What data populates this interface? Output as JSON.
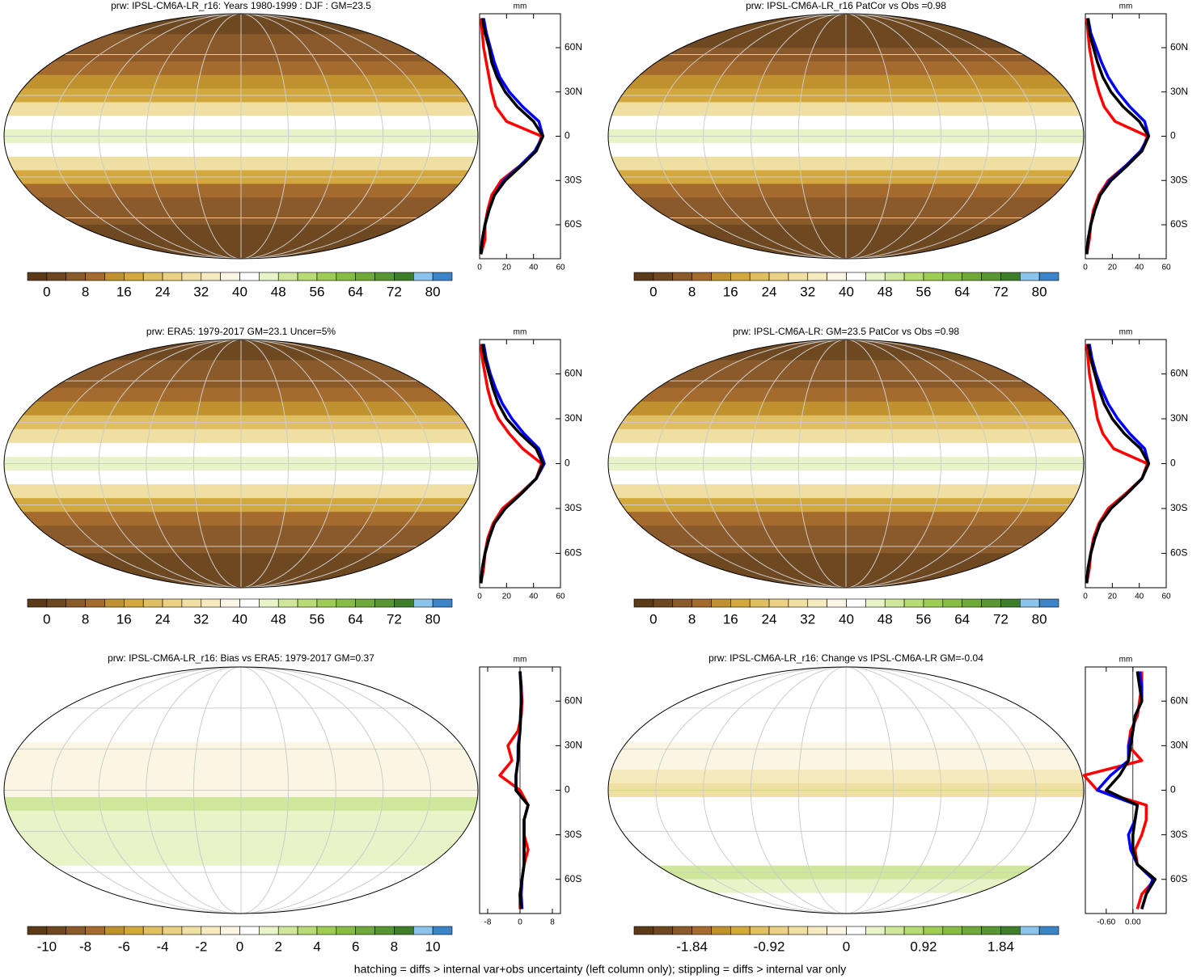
{
  "chart_data": [
    {
      "type": "map",
      "title": "prw: IPSL-CM6A-LR_r16: Years 1980-1999 : DJF : GM=23.5",
      "colors": [
        "#5b3b17",
        "#6e4820",
        "#8a5a2a",
        "#a56b2e",
        "#c0912f",
        "#d3a93e",
        "#e0bf62",
        "#ead184",
        "#f0dfa2",
        "#f5eabd",
        "#fbf6e4",
        "#ffffff",
        "#e8f3c8",
        "#cfe79a",
        "#b8db74",
        "#9fcc55",
        "#87bc45",
        "#6ea93a",
        "#579632",
        "#3f7f2b",
        "#8ac4ec",
        "#3b84c8"
      ],
      "clim": [
        0,
        80
      ],
      "cticks": [
        0,
        8,
        16,
        24,
        32,
        40,
        48,
        56,
        64,
        72,
        80
      ],
      "profile": {
        "type": "line",
        "xlabel": "mm",
        "y": [
          80,
          70,
          60,
          50,
          40,
          30,
          20,
          10,
          0,
          -10,
          -20,
          -30,
          -40,
          -50,
          -60,
          -70,
          -80
        ],
        "ylim": [
          -83,
          83
        ],
        "yticks": [
          {
            "value": 60,
            "label": "60N"
          },
          {
            "value": 30,
            "label": "30N"
          },
          0,
          {
            "value": -30,
            "label": "30S"
          },
          {
            "value": -60,
            "label": "60S"
          }
        ],
        "xlim": [
          0,
          60
        ],
        "xticks": [
          0,
          20,
          40,
          60
        ],
        "series": [
          {
            "color": "#ff0000",
            "values": [
              1,
              2,
              3,
              5,
              7,
              9,
              12,
              20,
              46,
              42,
              30,
              16,
              9,
              6,
              4,
              4,
              1
            ]
          },
          {
            "color": "#0000ff",
            "values": [
              3,
              5,
              8,
              11,
              15,
              22,
              32,
              44,
              47,
              41,
              30,
              18,
              11,
              7,
              4,
              2,
              1
            ]
          },
          {
            "color": "#000000",
            "values": [
              2,
              4,
              7,
              9,
              13,
              19,
              28,
              40,
              47,
              42,
              31,
              19,
              11,
              7,
              4,
              2,
              1
            ]
          }
        ]
      }
    },
    {
      "type": "map",
      "title": "prw: IPSL-CM6A-LR_r16 PatCor vs Obs =0.98",
      "colors": [
        "#5b3b17",
        "#6e4820",
        "#8a5a2a",
        "#a56b2e",
        "#c0912f",
        "#d3a93e",
        "#e0bf62",
        "#ead184",
        "#f0dfa2",
        "#f5eabd",
        "#fbf6e4",
        "#ffffff",
        "#e8f3c8",
        "#cfe79a",
        "#b8db74",
        "#9fcc55",
        "#87bc45",
        "#6ea93a",
        "#579632",
        "#3f7f2b",
        "#8ac4ec",
        "#3b84c8"
      ],
      "clim": [
        0,
        80
      ],
      "cticks": [
        0,
        8,
        16,
        24,
        32,
        40,
        48,
        56,
        64,
        72,
        80
      ],
      "profile": {
        "type": "line",
        "xlabel": "mm",
        "y": [
          80,
          70,
          60,
          50,
          40,
          30,
          20,
          10,
          0,
          -10,
          -20,
          -30,
          -40,
          -50,
          -60,
          -70,
          -80
        ],
        "ylim": [
          -83,
          83
        ],
        "yticks": [
          {
            "value": 60,
            "label": "60N"
          },
          {
            "value": 30,
            "label": "30N"
          },
          0,
          {
            "value": -30,
            "label": "30S"
          },
          {
            "value": -60,
            "label": "60S"
          }
        ],
        "xlim": [
          0,
          60
        ],
        "xticks": [
          0,
          20,
          40,
          60
        ],
        "series": [
          {
            "color": "#ff0000",
            "values": [
              1,
              2,
              3,
              5,
              7,
              10,
              14,
              22,
              46,
              42,
              30,
              17,
              10,
              6,
              4,
              3,
              1
            ]
          },
          {
            "color": "#0000ff",
            "values": [
              2,
              4,
              8,
              12,
              17,
              24,
              33,
              44,
              47,
              41,
              30,
              18,
              11,
              7,
              4,
              2,
              1
            ]
          },
          {
            "color": "#000000",
            "values": [
              2,
              3,
              6,
              9,
              13,
              19,
              28,
              40,
              47,
              42,
              31,
              19,
              11,
              7,
              4,
              2,
              1
            ]
          }
        ]
      }
    },
    {
      "type": "map",
      "title": "prw: ERA5: 1979-2017 GM=23.1 Uncer=5%",
      "colors": [
        "#5b3b17",
        "#6e4820",
        "#8a5a2a",
        "#a56b2e",
        "#c0912f",
        "#d3a93e",
        "#e0bf62",
        "#ead184",
        "#f0dfa2",
        "#f5eabd",
        "#fbf6e4",
        "#ffffff",
        "#e8f3c8",
        "#cfe79a",
        "#b8db74",
        "#9fcc55",
        "#87bc45",
        "#6ea93a",
        "#579632",
        "#3f7f2b",
        "#8ac4ec",
        "#3b84c8"
      ],
      "clim": [
        0,
        80
      ],
      "cticks": [
        0,
        8,
        16,
        24,
        32,
        40,
        48,
        56,
        64,
        72,
        80
      ],
      "profile": {
        "type": "line",
        "xlabel": "mm",
        "y": [
          80,
          70,
          60,
          50,
          40,
          30,
          20,
          10,
          0,
          -10,
          -20,
          -30,
          -40,
          -50,
          -60,
          -70,
          -80
        ],
        "ylim": [
          -83,
          83
        ],
        "yticks": [
          {
            "value": 60,
            "label": "60N"
          },
          {
            "value": 30,
            "label": "30N"
          },
          0,
          {
            "value": -30,
            "label": "30S"
          },
          {
            "value": -60,
            "label": "60S"
          }
        ],
        "xlim": [
          0,
          60
        ],
        "xticks": [
          0,
          20,
          40,
          60
        ],
        "series": [
          {
            "color": "#ff0000",
            "values": [
              1,
              2,
              4,
              6,
              9,
              14,
              22,
              32,
              46,
              42,
              30,
              17,
              10,
              6,
              4,
              3,
              1
            ]
          },
          {
            "color": "#0000ff",
            "values": [
              3,
              5,
              8,
              12,
              17,
              24,
              33,
              44,
              48,
              42,
              31,
              19,
              11,
              7,
              4,
              2,
              1
            ]
          },
          {
            "color": "#000000",
            "values": [
              2,
              4,
              7,
              10,
              14,
              20,
              30,
              42,
              47,
              42,
              31,
              19,
              11,
              7,
              4,
              2,
              1
            ]
          }
        ]
      }
    },
    {
      "type": "map",
      "title": "prw: IPSL-CM6A-LR: GM=23.5 PatCor vs Obs =0.98",
      "colors": [
        "#5b3b17",
        "#6e4820",
        "#8a5a2a",
        "#a56b2e",
        "#c0912f",
        "#d3a93e",
        "#e0bf62",
        "#ead184",
        "#f0dfa2",
        "#f5eabd",
        "#fbf6e4",
        "#ffffff",
        "#e8f3c8",
        "#cfe79a",
        "#b8db74",
        "#9fcc55",
        "#87bc45",
        "#6ea93a",
        "#579632",
        "#3f7f2b",
        "#8ac4ec",
        "#3b84c8"
      ],
      "clim": [
        0,
        80
      ],
      "cticks": [
        0,
        8,
        16,
        24,
        32,
        40,
        48,
        56,
        64,
        72,
        80
      ],
      "profile": {
        "type": "line",
        "xlabel": "mm",
        "y": [
          80,
          70,
          60,
          50,
          40,
          30,
          20,
          10,
          0,
          -10,
          -20,
          -30,
          -40,
          -50,
          -60,
          -70,
          -80
        ],
        "ylim": [
          -83,
          83
        ],
        "yticks": [
          {
            "value": 60,
            "label": "60N"
          },
          {
            "value": 30,
            "label": "30N"
          },
          0,
          {
            "value": -30,
            "label": "30S"
          },
          {
            "value": -60,
            "label": "60S"
          }
        ],
        "xlim": [
          0,
          60
        ],
        "xticks": [
          0,
          20,
          40,
          60
        ],
        "series": [
          {
            "color": "#ff0000",
            "values": [
              1,
              2,
              3,
              5,
              7,
              9,
              13,
              21,
              46,
              42,
              30,
              17,
              10,
              6,
              4,
              3,
              1
            ]
          },
          {
            "color": "#0000ff",
            "values": [
              3,
              5,
              8,
              12,
              17,
              24,
              33,
              44,
              47,
              42,
              31,
              19,
              11,
              7,
              4,
              2,
              1
            ]
          },
          {
            "color": "#000000",
            "values": [
              2,
              4,
              7,
              10,
              14,
              20,
              29,
              41,
              47,
              42,
              31,
              19,
              11,
              7,
              4,
              2,
              1
            ]
          }
        ]
      }
    },
    {
      "type": "map",
      "title": "prw: IPSL-CM6A-LR_r16: Bias vs ERA5: 1979-2017 GM=0.37",
      "colors": [
        "#5b3b17",
        "#6e4820",
        "#8a5a2a",
        "#a56b2e",
        "#c0912f",
        "#d3a93e",
        "#e0bf62",
        "#ead184",
        "#f0dfa2",
        "#f5eabd",
        "#fbf6e4",
        "#ffffff",
        "#e8f3c8",
        "#cfe79a",
        "#b8db74",
        "#9fcc55",
        "#87bc45",
        "#6ea93a",
        "#579632",
        "#3f7f2b",
        "#8ac4ec",
        "#3b84c8"
      ],
      "clim": [
        -10,
        10
      ],
      "cticks": [
        -10,
        -8,
        -6,
        -4,
        -2,
        0,
        2,
        4,
        6,
        8,
        10
      ],
      "profile": {
        "type": "line",
        "xlabel": "mm",
        "y": [
          80,
          70,
          60,
          50,
          40,
          30,
          20,
          10,
          0,
          -10,
          -20,
          -30,
          -40,
          -50,
          -60,
          -70,
          -80
        ],
        "ylim": [
          -83,
          83
        ],
        "yticks": [
          {
            "value": 60,
            "label": "60N"
          },
          {
            "value": 30,
            "label": "30N"
          },
          0,
          {
            "value": -30,
            "label": "30S"
          },
          {
            "value": -60,
            "label": "60S"
          }
        ],
        "xlim": [
          -10,
          10
        ],
        "xticks": [
          -8,
          0,
          8
        ],
        "series": [
          {
            "color": "#ff0000",
            "values": [
              0,
              0.3,
              0.5,
              0.3,
              -0.5,
              -3,
              -2,
              -5,
              0,
              2,
              1,
              1,
              2,
              1,
              0.5,
              0,
              0
            ]
          },
          {
            "color": "#0000ff",
            "values": [
              0,
              0.3,
              0.3,
              0.2,
              0,
              -0.5,
              -0.5,
              -1,
              -1,
              2,
              1,
              1,
              1,
              1,
              0.5,
              0.3,
              0.5
            ]
          },
          {
            "color": "#000000",
            "values": [
              0,
              0.2,
              0.3,
              0.1,
              0,
              -0.3,
              -0.5,
              -1,
              -1,
              2,
              1,
              1,
              1,
              1,
              0.5,
              0,
              0.3
            ]
          }
        ]
      }
    },
    {
      "type": "map",
      "title": "prw: IPSL-CM6A-LR_r16: Change vs IPSL-CM6A-LR GM=-0.04",
      "colors": [
        "#5b3b17",
        "#6e4820",
        "#8a5a2a",
        "#a56b2e",
        "#c0912f",
        "#d3a93e",
        "#e0bf62",
        "#ead184",
        "#f0dfa2",
        "#f5eabd",
        "#fbf6e4",
        "#ffffff",
        "#e8f3c8",
        "#cfe79a",
        "#b8db74",
        "#9fcc55",
        "#87bc45",
        "#6ea93a",
        "#579632",
        "#3f7f2b",
        "#8ac4ec",
        "#3b84c8"
      ],
      "clim": [
        -2.3,
        2.3
      ],
      "cticks": [
        -1.84,
        -0.92,
        0,
        0.92,
        1.84
      ],
      "profile": {
        "type": "line",
        "xlabel": "mm",
        "y": [
          80,
          70,
          60,
          50,
          40,
          30,
          20,
          10,
          0,
          -10,
          -20,
          -30,
          -40,
          -50,
          -60,
          -70,
          -80
        ],
        "ylim": [
          -83,
          83
        ],
        "yticks": [
          {
            "value": 60,
            "label": "60N"
          },
          {
            "value": 30,
            "label": "30N"
          },
          0,
          {
            "value": -30,
            "label": "30S"
          },
          {
            "value": -60,
            "label": "60S"
          }
        ],
        "xlim": [
          -1.07,
          0.75
        ],
        "xticks": [
          {
            "value": -0.6,
            "label": "-0.60"
          },
          {
            "value": 0,
            "label": "0.00"
          }
        ],
        "series": [
          {
            "color": "#ff0000",
            "values": [
              0.2,
              0.2,
              0.15,
              0.1,
              -0.05,
              -0.1,
              0.2,
              -1.1,
              -0.8,
              0.3,
              0.3,
              0.2,
              0.05,
              0.1,
              0.5,
              0.2,
              0.1
            ]
          },
          {
            "color": "#0000ff",
            "values": [
              0.15,
              0.2,
              0.2,
              0.05,
              0,
              -0.1,
              -0.1,
              -0.5,
              -0.8,
              0.1,
              0.05,
              -0.1,
              -0.05,
              0.1,
              0.45,
              0.3,
              0.2
            ]
          },
          {
            "color": "#000000",
            "values": [
              0.1,
              0.15,
              0.2,
              0.05,
              0,
              -0.05,
              -0.1,
              -0.3,
              -0.6,
              0.1,
              0.05,
              0,
              0,
              0.1,
              0.5,
              0.3,
              0.2
            ]
          }
        ]
      }
    }
  ],
  "footnote": "hatching = diffs > internal var+obs uncertainty (left column only); stippling = diffs > internal var only"
}
